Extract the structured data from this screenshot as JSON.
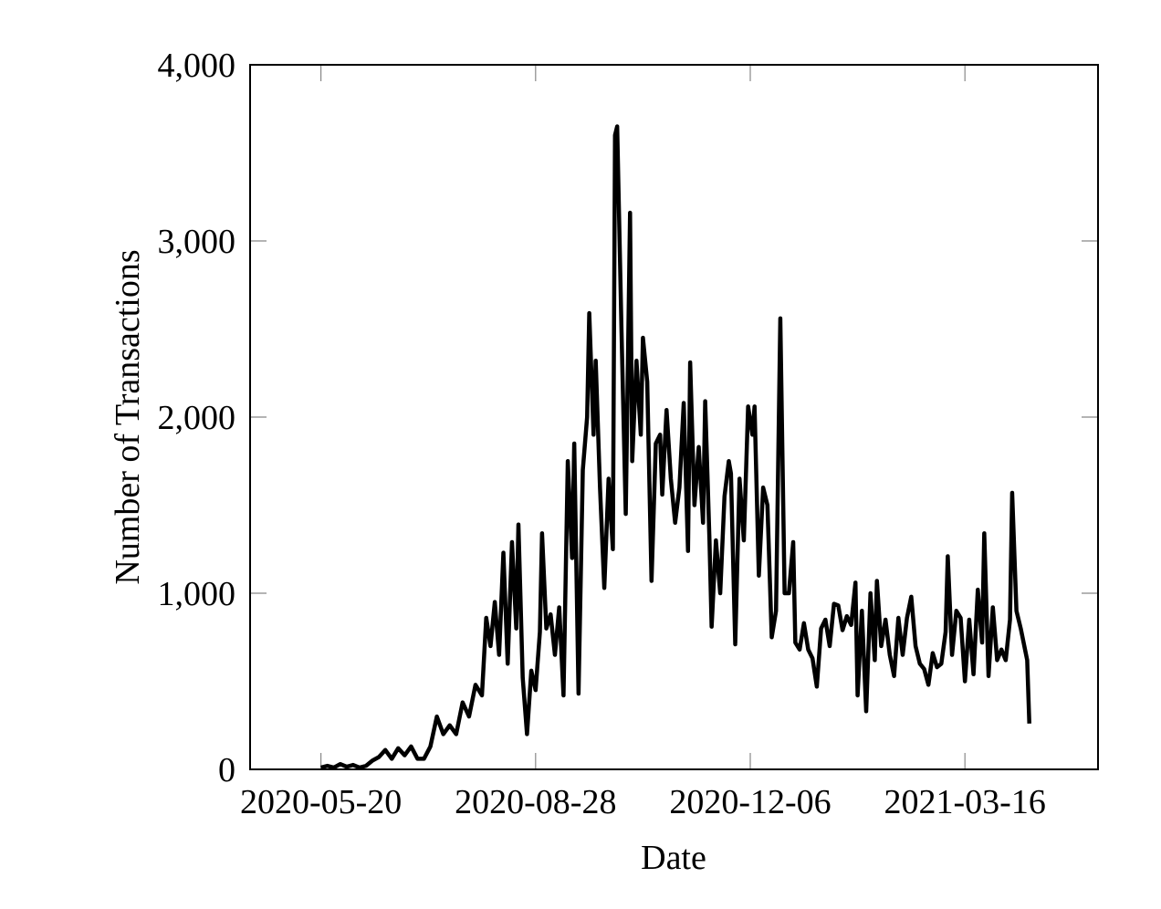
{
  "chart_data": {
    "type": "line",
    "xlabel": "Date",
    "ylabel": "Number of Transactions",
    "color": "#000000",
    "xlim": [
      "2020-04-17",
      "2021-05-17"
    ],
    "xticks": [
      "2020-05-20",
      "2020-08-28",
      "2020-12-06",
      "2021-03-16"
    ],
    "ylim": [
      0,
      4000
    ],
    "yticks": [
      0,
      {
        "value": 1000,
        "label": "1,000"
      },
      {
        "value": 2000,
        "label": "2,000"
      },
      {
        "value": 3000,
        "label": "3,000"
      },
      {
        "value": 4000,
        "label": "4,000"
      }
    ],
    "x": [
      "2020-05-20",
      "2020-05-23",
      "2020-05-26",
      "2020-05-29",
      "2020-06-01",
      "2020-06-04",
      "2020-06-07",
      "2020-06-10",
      "2020-06-13",
      "2020-06-16",
      "2020-06-19",
      "2020-06-22",
      "2020-06-25",
      "2020-06-28",
      "2020-07-01",
      "2020-07-04",
      "2020-07-07",
      "2020-07-10",
      "2020-07-13",
      "2020-07-16",
      "2020-07-19",
      "2020-07-22",
      "2020-07-25",
      "2020-07-28",
      "2020-07-31",
      "2020-08-03",
      "2020-08-05",
      "2020-08-07",
      "2020-08-09",
      "2020-08-11",
      "2020-08-13",
      "2020-08-15",
      "2020-08-17",
      "2020-08-19",
      "2020-08-20",
      "2020-08-22",
      "2020-08-24",
      "2020-08-26",
      "2020-08-28",
      "2020-08-30",
      "2020-08-31",
      "2020-09-02",
      "2020-09-04",
      "2020-09-06",
      "2020-09-08",
      "2020-09-10",
      "2020-09-12",
      "2020-09-14",
      "2020-09-15",
      "2020-09-17",
      "2020-09-19",
      "2020-09-21",
      "2020-09-22",
      "2020-09-24",
      "2020-09-25",
      "2020-09-27",
      "2020-09-29",
      "2020-10-01",
      "2020-10-03",
      "2020-10-04",
      "2020-10-05",
      "2020-10-07",
      "2020-10-09",
      "2020-10-11",
      "2020-10-12",
      "2020-10-14",
      "2020-10-16",
      "2020-10-17",
      "2020-10-19",
      "2020-10-21",
      "2020-10-23",
      "2020-10-25",
      "2020-10-26",
      "2020-10-28",
      "2020-10-30",
      "2020-11-01",
      "2020-11-03",
      "2020-11-05",
      "2020-11-07",
      "2020-11-08",
      "2020-11-10",
      "2020-11-12",
      "2020-11-14",
      "2020-11-15",
      "2020-11-17",
      "2020-11-18",
      "2020-11-20",
      "2020-11-22",
      "2020-11-24",
      "2020-11-26",
      "2020-11-27",
      "2020-11-29",
      "2020-12-01",
      "2020-12-03",
      "2020-12-05",
      "2020-12-07",
      "2020-12-08",
      "2020-12-10",
      "2020-12-12",
      "2020-12-14",
      "2020-12-16",
      "2020-12-18",
      "2020-12-20",
      "2020-12-22",
      "2020-12-24",
      "2020-12-26",
      "2020-12-27",
      "2020-12-29",
      "2020-12-31",
      "2021-01-02",
      "2021-01-04",
      "2021-01-06",
      "2021-01-08",
      "2021-01-10",
      "2021-01-12",
      "2021-01-14",
      "2021-01-16",
      "2021-01-18",
      "2021-01-20",
      "2021-01-22",
      "2021-01-24",
      "2021-01-25",
      "2021-01-27",
      "2021-01-29",
      "2021-01-31",
      "2021-02-02",
      "2021-02-03",
      "2021-02-05",
      "2021-02-07",
      "2021-02-09",
      "2021-02-11",
      "2021-02-13",
      "2021-02-15",
      "2021-02-17",
      "2021-02-19",
      "2021-02-21",
      "2021-02-23",
      "2021-02-25",
      "2021-02-27",
      "2021-03-01",
      "2021-03-03",
      "2021-03-05",
      "2021-03-07",
      "2021-03-08",
      "2021-03-10",
      "2021-03-12",
      "2021-03-14",
      "2021-03-16",
      "2021-03-18",
      "2021-03-20",
      "2021-03-22",
      "2021-03-24",
      "2021-03-25",
      "2021-03-27",
      "2021-03-29",
      "2021-03-31",
      "2021-04-02",
      "2021-04-04",
      "2021-04-06",
      "2021-04-07",
      "2021-04-09",
      "2021-04-11",
      "2021-04-13",
      "2021-04-14",
      "2021-04-15"
    ],
    "values": [
      10,
      20,
      10,
      30,
      15,
      25,
      10,
      20,
      50,
      70,
      110,
      60,
      120,
      80,
      130,
      60,
      60,
      130,
      300,
      200,
      250,
      200,
      380,
      300,
      480,
      420,
      860,
      700,
      950,
      650,
      1230,
      600,
      1290,
      800,
      1390,
      520,
      200,
      560,
      450,
      780,
      1340,
      800,
      880,
      650,
      920,
      420,
      1750,
      1200,
      1850,
      430,
      1700,
      2000,
      2590,
      1900,
      2320,
      1600,
      1030,
      1650,
      1250,
      3600,
      3650,
      2500,
      1450,
      3160,
      1750,
      2320,
      1900,
      2450,
      2200,
      1070,
      1850,
      1900,
      1560,
      2040,
      1650,
      1400,
      1600,
      2080,
      1240,
      2310,
      1500,
      1830,
      1400,
      2090,
      1300,
      810,
      1300,
      1000,
      1550,
      1750,
      1680,
      710,
      1650,
      1300,
      2060,
      1900,
      2060,
      1100,
      1600,
      1500,
      750,
      900,
      2560,
      1000,
      1000,
      1290,
      720,
      680,
      830,
      680,
      630,
      470,
      800,
      850,
      700,
      940,
      930,
      790,
      870,
      820,
      1060,
      420,
      900,
      330,
      1000,
      620,
      1070,
      700,
      850,
      650,
      530,
      860,
      650,
      860,
      980,
      700,
      600,
      570,
      480,
      660,
      580,
      600,
      780,
      1210,
      650,
      900,
      860,
      500,
      850,
      540,
      1020,
      720,
      1340,
      530,
      920,
      620,
      680,
      620,
      850,
      1570,
      900,
      800,
      680,
      620,
      260
    ]
  }
}
